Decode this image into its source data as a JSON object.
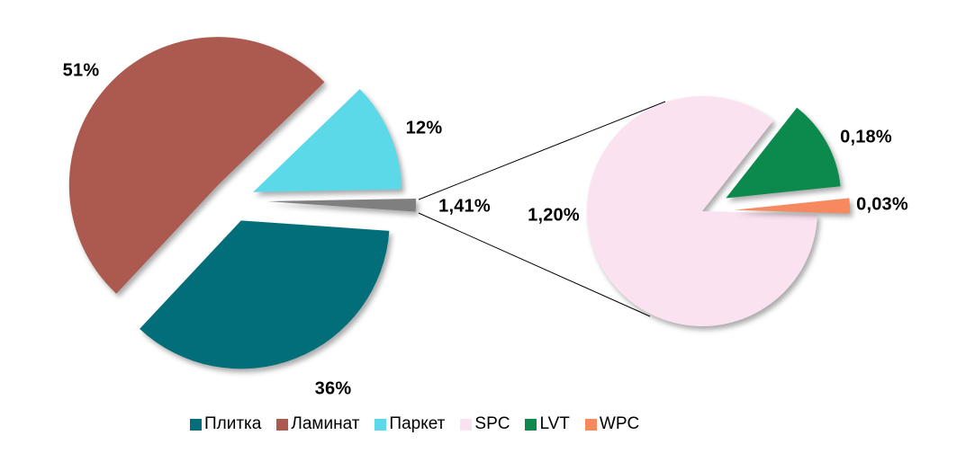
{
  "chart_data": {
    "type": "pie",
    "variant": "pie-of-pie-exploded",
    "unit": "%",
    "decimal_separator": ",",
    "legend_position": "bottom",
    "primary_pie": {
      "slices": [
        {
          "name": "Плитка",
          "value": 36,
          "label": "36%",
          "color": "#026E79"
        },
        {
          "name": "Ламинат",
          "value": 51,
          "label": "51%",
          "color": "#AC5A50"
        },
        {
          "name": "Паркет",
          "value": 12,
          "label": "12%",
          "color": "#5CD9E9"
        },
        {
          "name": "",
          "value": 1.41,
          "label": "1,41%",
          "color": "#7F7F7F"
        }
      ]
    },
    "secondary_pie": {
      "slices": [
        {
          "name": "SPC",
          "value": 1.2,
          "label": "1,20%",
          "color": "#FBE2F0"
        },
        {
          "name": "LVT",
          "value": 0.18,
          "label": "0,18%",
          "color": "#0C8A4E"
        },
        {
          "name": "WPC",
          "value": 0.03,
          "label": "0,03%",
          "color": "#F6895D"
        }
      ]
    },
    "legend": [
      {
        "label": "Плитка",
        "color": "#026E79"
      },
      {
        "label": "Ламинат",
        "color": "#AC5A50"
      },
      {
        "label": "Паркет",
        "color": "#5CD9E9"
      },
      {
        "label": "SPC",
        "color": "#FBE2F0"
      },
      {
        "label": "LVT",
        "color": "#0C8A4E"
      },
      {
        "label": "WPC",
        "color": "#F6895D"
      }
    ]
  }
}
